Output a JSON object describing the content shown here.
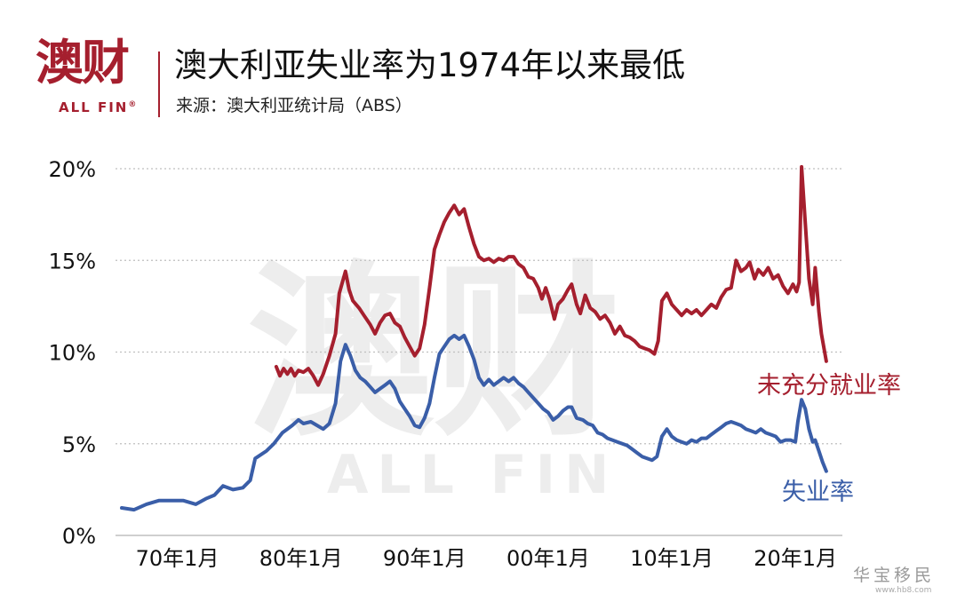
{
  "branding": {
    "logo_cn": "澳财",
    "logo_en": "ALL FIN",
    "logo_mark": "®"
  },
  "header": {
    "title": "澳大利亚失业率为1974年以来最低",
    "source": "来源：澳大利亚统计局（ABS）"
  },
  "watermark": {
    "site": "华宝移民",
    "url": "www.hb8.com"
  },
  "colors": {
    "underemployment": "#a51f2e",
    "unemployment": "#3a5ea8",
    "grid": "#bfbfbf"
  },
  "chart_data": {
    "type": "line",
    "title": "澳大利亚失业率为1974年以来最低",
    "xlabel": "",
    "ylabel": "",
    "xlim": [
      1965,
      2023.8
    ],
    "ylim": [
      0,
      20
    ],
    "y_ticks": [
      0,
      5,
      10,
      15,
      20
    ],
    "y_tick_labels": [
      "0%",
      "5%",
      "10%",
      "15%",
      "20%"
    ],
    "x_ticks": [
      1970,
      1980,
      1990,
      2000,
      2010,
      2020
    ],
    "x_tick_labels": [
      "70年1月",
      "80年1月",
      "90年1月",
      "00年1月",
      "10年1月",
      "20年1月"
    ],
    "grid": "horizontal-dotted",
    "series": [
      {
        "name": "未充分就业率",
        "color": "#a51f2e",
        "points": [
          [
            1978.0,
            9.2
          ],
          [
            1978.3,
            8.7
          ],
          [
            1978.6,
            9.1
          ],
          [
            1978.9,
            8.8
          ],
          [
            1979.2,
            9.1
          ],
          [
            1979.5,
            8.7
          ],
          [
            1979.8,
            9.0
          ],
          [
            1980.2,
            8.9
          ],
          [
            1980.6,
            9.1
          ],
          [
            1981.0,
            8.7
          ],
          [
            1981.4,
            8.2
          ],
          [
            1981.8,
            8.8
          ],
          [
            1982.3,
            9.8
          ],
          [
            1982.8,
            11.0
          ],
          [
            1983.1,
            13.2
          ],
          [
            1983.6,
            14.4
          ],
          [
            1983.9,
            13.4
          ],
          [
            1984.2,
            12.8
          ],
          [
            1984.7,
            12.4
          ],
          [
            1985.1,
            12.0
          ],
          [
            1985.6,
            11.5
          ],
          [
            1986.0,
            11.0
          ],
          [
            1986.4,
            11.6
          ],
          [
            1986.8,
            12.0
          ],
          [
            1987.2,
            12.1
          ],
          [
            1987.6,
            11.6
          ],
          [
            1988.0,
            11.4
          ],
          [
            1988.4,
            10.8
          ],
          [
            1988.8,
            10.3
          ],
          [
            1989.2,
            9.8
          ],
          [
            1989.6,
            10.2
          ],
          [
            1990.0,
            11.5
          ],
          [
            1990.4,
            13.5
          ],
          [
            1990.8,
            15.6
          ],
          [
            1991.2,
            16.4
          ],
          [
            1991.6,
            17.1
          ],
          [
            1992.0,
            17.6
          ],
          [
            1992.4,
            18.0
          ],
          [
            1992.8,
            17.5
          ],
          [
            1993.2,
            17.8
          ],
          [
            1993.6,
            16.8
          ],
          [
            1994.0,
            15.9
          ],
          [
            1994.4,
            15.2
          ],
          [
            1994.8,
            15.0
          ],
          [
            1995.2,
            15.1
          ],
          [
            1995.6,
            14.9
          ],
          [
            1996.0,
            15.1
          ],
          [
            1996.4,
            15.0
          ],
          [
            1996.8,
            15.2
          ],
          [
            1997.2,
            15.2
          ],
          [
            1997.6,
            14.8
          ],
          [
            1998.0,
            14.6
          ],
          [
            1998.4,
            14.1
          ],
          [
            1998.8,
            14.0
          ],
          [
            1999.2,
            13.5
          ],
          [
            1999.5,
            12.9
          ],
          [
            1999.8,
            13.5
          ],
          [
            2000.1,
            12.9
          ],
          [
            2000.5,
            11.8
          ],
          [
            2000.8,
            12.6
          ],
          [
            2001.2,
            12.9
          ],
          [
            2001.6,
            13.4
          ],
          [
            2001.9,
            13.7
          ],
          [
            2002.3,
            12.6
          ],
          [
            2002.6,
            12.1
          ],
          [
            2003.0,
            13.1
          ],
          [
            2003.4,
            12.4
          ],
          [
            2003.8,
            12.2
          ],
          [
            2004.2,
            11.8
          ],
          [
            2004.6,
            12.0
          ],
          [
            2005.0,
            11.6
          ],
          [
            2005.4,
            11.0
          ],
          [
            2005.8,
            11.4
          ],
          [
            2006.2,
            10.9
          ],
          [
            2006.6,
            10.8
          ],
          [
            2007.0,
            10.6
          ],
          [
            2007.4,
            10.3
          ],
          [
            2007.8,
            10.2
          ],
          [
            2008.2,
            10.1
          ],
          [
            2008.6,
            9.9
          ],
          [
            2008.9,
            10.6
          ],
          [
            2009.2,
            12.8
          ],
          [
            2009.6,
            13.2
          ],
          [
            2010.0,
            12.6
          ],
          [
            2010.4,
            12.3
          ],
          [
            2010.8,
            12.0
          ],
          [
            2011.2,
            12.3
          ],
          [
            2011.6,
            12.1
          ],
          [
            2012.0,
            12.3
          ],
          [
            2012.4,
            12.0
          ],
          [
            2012.8,
            12.3
          ],
          [
            2013.2,
            12.6
          ],
          [
            2013.6,
            12.4
          ],
          [
            2014.0,
            13.0
          ],
          [
            2014.4,
            13.4
          ],
          [
            2014.8,
            13.5
          ],
          [
            2015.2,
            15.0
          ],
          [
            2015.6,
            14.4
          ],
          [
            2016.0,
            14.6
          ],
          [
            2016.3,
            14.9
          ],
          [
            2016.7,
            14.0
          ],
          [
            2017.0,
            14.5
          ],
          [
            2017.4,
            14.2
          ],
          [
            2017.8,
            14.6
          ],
          [
            2018.2,
            14.0
          ],
          [
            2018.6,
            14.2
          ],
          [
            2019.0,
            13.6
          ],
          [
            2019.4,
            13.2
          ],
          [
            2019.8,
            13.7
          ],
          [
            2020.1,
            13.3
          ],
          [
            2020.3,
            13.8
          ],
          [
            2020.5,
            20.1
          ],
          [
            2020.8,
            17.0
          ],
          [
            2021.1,
            14.0
          ],
          [
            2021.4,
            12.6
          ],
          [
            2021.6,
            14.6
          ],
          [
            2021.9,
            12.2
          ],
          [
            2022.1,
            11.0
          ],
          [
            2022.5,
            9.5
          ]
        ]
      },
      {
        "name": "失业率",
        "color": "#3a5ea8",
        "points": [
          [
            1965.5,
            1.5
          ],
          [
            1966.5,
            1.4
          ],
          [
            1967.5,
            1.7
          ],
          [
            1968.5,
            1.9
          ],
          [
            1969.5,
            1.9
          ],
          [
            1970.5,
            1.9
          ],
          [
            1971.5,
            1.7
          ],
          [
            1972.3,
            2.0
          ],
          [
            1973.0,
            2.2
          ],
          [
            1973.7,
            2.7
          ],
          [
            1974.5,
            2.5
          ],
          [
            1975.3,
            2.6
          ],
          [
            1975.9,
            3.0
          ],
          [
            1976.3,
            4.2
          ],
          [
            1977.2,
            4.6
          ],
          [
            1977.8,
            5.0
          ],
          [
            1978.5,
            5.6
          ],
          [
            1979.3,
            6.0
          ],
          [
            1979.8,
            6.3
          ],
          [
            1980.2,
            6.1
          ],
          [
            1980.8,
            6.2
          ],
          [
            1981.3,
            6.0
          ],
          [
            1981.8,
            5.8
          ],
          [
            1982.3,
            6.1
          ],
          [
            1982.8,
            7.2
          ],
          [
            1983.2,
            9.5
          ],
          [
            1983.6,
            10.4
          ],
          [
            1984.0,
            9.8
          ],
          [
            1984.4,
            9.0
          ],
          [
            1984.8,
            8.6
          ],
          [
            1985.2,
            8.4
          ],
          [
            1985.6,
            8.1
          ],
          [
            1986.0,
            7.8
          ],
          [
            1986.4,
            8.0
          ],
          [
            1986.8,
            8.2
          ],
          [
            1987.2,
            8.4
          ],
          [
            1987.6,
            8.0
          ],
          [
            1988.0,
            7.3
          ],
          [
            1988.4,
            6.9
          ],
          [
            1988.8,
            6.5
          ],
          [
            1989.2,
            6.0
          ],
          [
            1989.6,
            5.9
          ],
          [
            1990.0,
            6.4
          ],
          [
            1990.4,
            7.2
          ],
          [
            1990.8,
            8.6
          ],
          [
            1991.2,
            9.9
          ],
          [
            1991.6,
            10.3
          ],
          [
            1992.0,
            10.7
          ],
          [
            1992.4,
            10.9
          ],
          [
            1992.8,
            10.7
          ],
          [
            1993.2,
            10.9
          ],
          [
            1993.6,
            10.3
          ],
          [
            1994.0,
            9.6
          ],
          [
            1994.4,
            8.6
          ],
          [
            1994.8,
            8.2
          ],
          [
            1995.2,
            8.5
          ],
          [
            1995.6,
            8.2
          ],
          [
            1996.0,
            8.4
          ],
          [
            1996.4,
            8.6
          ],
          [
            1996.8,
            8.4
          ],
          [
            1997.2,
            8.6
          ],
          [
            1997.6,
            8.3
          ],
          [
            1998.0,
            8.1
          ],
          [
            1998.4,
            7.8
          ],
          [
            1998.8,
            7.5
          ],
          [
            1999.2,
            7.2
          ],
          [
            1999.6,
            6.9
          ],
          [
            2000.0,
            6.7
          ],
          [
            2000.4,
            6.3
          ],
          [
            2000.8,
            6.5
          ],
          [
            2001.2,
            6.8
          ],
          [
            2001.6,
            7.0
          ],
          [
            2001.9,
            7.0
          ],
          [
            2002.3,
            6.4
          ],
          [
            2002.8,
            6.3
          ],
          [
            2003.2,
            6.1
          ],
          [
            2003.6,
            6.0
          ],
          [
            2004.0,
            5.6
          ],
          [
            2004.4,
            5.5
          ],
          [
            2004.8,
            5.3
          ],
          [
            2005.2,
            5.2
          ],
          [
            2005.6,
            5.1
          ],
          [
            2006.0,
            5.0
          ],
          [
            2006.4,
            4.9
          ],
          [
            2006.8,
            4.7
          ],
          [
            2007.2,
            4.5
          ],
          [
            2007.6,
            4.3
          ],
          [
            2008.0,
            4.2
          ],
          [
            2008.4,
            4.1
          ],
          [
            2008.8,
            4.3
          ],
          [
            2009.2,
            5.4
          ],
          [
            2009.6,
            5.8
          ],
          [
            2010.0,
            5.4
          ],
          [
            2010.4,
            5.2
          ],
          [
            2010.8,
            5.1
          ],
          [
            2011.2,
            5.0
          ],
          [
            2011.6,
            5.2
          ],
          [
            2012.0,
            5.1
          ],
          [
            2012.4,
            5.3
          ],
          [
            2012.8,
            5.3
          ],
          [
            2013.2,
            5.5
          ],
          [
            2013.6,
            5.7
          ],
          [
            2014.0,
            5.9
          ],
          [
            2014.4,
            6.1
          ],
          [
            2014.8,
            6.2
          ],
          [
            2015.2,
            6.1
          ],
          [
            2015.6,
            6.0
          ],
          [
            2016.0,
            5.8
          ],
          [
            2016.4,
            5.7
          ],
          [
            2016.8,
            5.6
          ],
          [
            2017.2,
            5.8
          ],
          [
            2017.6,
            5.6
          ],
          [
            2018.0,
            5.5
          ],
          [
            2018.4,
            5.4
          ],
          [
            2018.8,
            5.1
          ],
          [
            2019.2,
            5.2
          ],
          [
            2019.6,
            5.2
          ],
          [
            2020.0,
            5.1
          ],
          [
            2020.2,
            6.2
          ],
          [
            2020.5,
            7.4
          ],
          [
            2020.8,
            6.9
          ],
          [
            2021.1,
            5.8
          ],
          [
            2021.4,
            5.1
          ],
          [
            2021.6,
            5.2
          ],
          [
            2021.9,
            4.6
          ],
          [
            2022.2,
            4.0
          ],
          [
            2022.5,
            3.5
          ]
        ]
      }
    ]
  }
}
